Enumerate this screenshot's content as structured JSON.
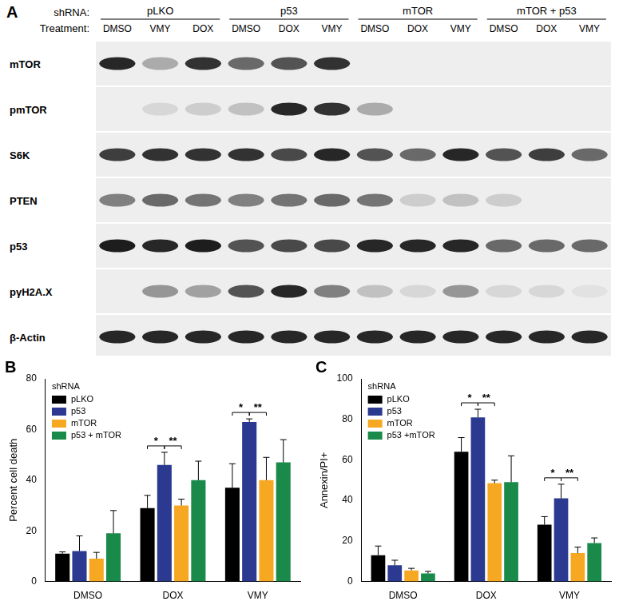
{
  "blot": {
    "panel": "A",
    "header_labels": [
      "shRNA:",
      "Treatment:"
    ],
    "groups": [
      {
        "name": "pLKO",
        "lanes": [
          "DMSO",
          "VMY",
          "DOX"
        ]
      },
      {
        "name": "p53",
        "lanes": [
          "DMSO",
          "DOX",
          "VMY"
        ]
      },
      {
        "name": "mTOR",
        "lanes": [
          "DMSO",
          "DOX",
          "VMY"
        ]
      },
      {
        "name": "mTOR + p53",
        "lanes": [
          "DMSO",
          "DOX",
          "VMY"
        ]
      }
    ],
    "rows": [
      {
        "label": "mTOR",
        "intensity": [
          0.9,
          0.3,
          0.85,
          0.6,
          0.7,
          0.85,
          0,
          0,
          0,
          0,
          0,
          0
        ]
      },
      {
        "label": "pmTOR",
        "intensity": [
          0,
          0.1,
          0.15,
          0.2,
          0.9,
          0.85,
          0.3,
          0,
          0,
          0,
          0,
          0
        ]
      },
      {
        "label": "S6K",
        "intensity": [
          0.8,
          0.85,
          0.85,
          0.85,
          0.75,
          0.9,
          0.7,
          0.6,
          0.9,
          0.7,
          0.8,
          0.6
        ]
      },
      {
        "label": "PTEN",
        "intensity": [
          0.5,
          0.6,
          0.55,
          0.5,
          0.55,
          0.6,
          0.55,
          0.15,
          0.2,
          0.15,
          0,
          0
        ]
      },
      {
        "label": "p53",
        "intensity": [
          0.95,
          0.9,
          0.95,
          0.7,
          0.75,
          0.75,
          0.9,
          0.9,
          0.9,
          0.6,
          0.6,
          0.6
        ]
      },
      {
        "label": "pγH2A.X",
        "intensity": [
          0,
          0.4,
          0.35,
          0.7,
          0.9,
          0.5,
          0.2,
          0.1,
          0.4,
          0.1,
          0.1,
          0.05
        ]
      },
      {
        "label": "β-Actin",
        "intensity": [
          0.9,
          0.9,
          0.9,
          0.9,
          0.9,
          0.9,
          0.9,
          0.9,
          0.9,
          0.9,
          0.9,
          0.9
        ]
      }
    ]
  },
  "chart_data": [
    {
      "type": "bar",
      "panel": "B",
      "y_label": "Percent cell death",
      "categories": [
        "DMSO",
        "DOX",
        "VMY"
      ],
      "series": [
        {
          "name": "pLKO",
          "color": "#000000",
          "values": [
            11,
            29,
            37
          ],
          "errors": [
            0.7,
            5,
            9.5
          ]
        },
        {
          "name": "p53",
          "color": "#2b3990",
          "values": [
            12,
            46,
            63
          ],
          "errors": [
            6,
            5,
            1.2
          ]
        },
        {
          "name": "mTOR",
          "color": "#f7a823",
          "values": [
            9,
            30,
            40
          ],
          "errors": [
            2.5,
            2.5,
            9
          ]
        },
        {
          "name": "p53 + mTOR",
          "color": "#1a8a4a",
          "values": [
            19,
            40,
            47
          ],
          "errors": [
            9,
            7.5,
            9
          ]
        }
      ],
      "ylim": [
        0,
        80
      ],
      "yticks": [
        0,
        20,
        40,
        60,
        80
      ],
      "grid": false,
      "legend": "upper left",
      "legend_title": "shRNA",
      "annotations": [
        {
          "category": "DOX",
          "from": "pLKO",
          "to": "p53",
          "label": "*"
        },
        {
          "category": "DOX",
          "from": "p53",
          "to": "mTOR",
          "label": "**"
        },
        {
          "category": "VMY",
          "from": "pLKO",
          "to": "p53",
          "label": "*"
        },
        {
          "category": "VMY",
          "from": "p53",
          "to": "mTOR",
          "label": "**"
        }
      ]
    },
    {
      "type": "bar",
      "panel": "C",
      "y_label": "Annexin/PI+",
      "categories": [
        "DMSO",
        "DOX",
        "VMY"
      ],
      "series": [
        {
          "name": "pLKO",
          "color": "#000000",
          "values": [
            13,
            64,
            28
          ],
          "errors": [
            4.5,
            7,
            4
          ]
        },
        {
          "name": "p53",
          "color": "#2b3990",
          "values": [
            8,
            81,
            41
          ],
          "errors": [
            2.5,
            4,
            7
          ]
        },
        {
          "name": "mTOR",
          "color": "#f7a823",
          "values": [
            5.5,
            48.5,
            14
          ],
          "errors": [
            1,
            1.5,
            3
          ]
        },
        {
          "name": "p53 +mTOR",
          "color": "#1a8a4a",
          "values": [
            4,
            49,
            19
          ],
          "errors": [
            1,
            13,
            2.5
          ]
        }
      ],
      "ylim": [
        0,
        100
      ],
      "yticks": [
        0,
        20,
        40,
        60,
        80,
        100
      ],
      "grid": false,
      "legend": "upper left",
      "legend_title": "shRNA",
      "annotations": [
        {
          "category": "DOX",
          "from": "pLKO",
          "to": "p53",
          "label": "*"
        },
        {
          "category": "DOX",
          "from": "p53",
          "to": "mTOR",
          "label": "**"
        },
        {
          "category": "VMY",
          "from": "pLKO",
          "to": "p53",
          "label": "*"
        },
        {
          "category": "VMY",
          "from": "p53",
          "to": "mTOR",
          "label": "**"
        }
      ]
    }
  ]
}
